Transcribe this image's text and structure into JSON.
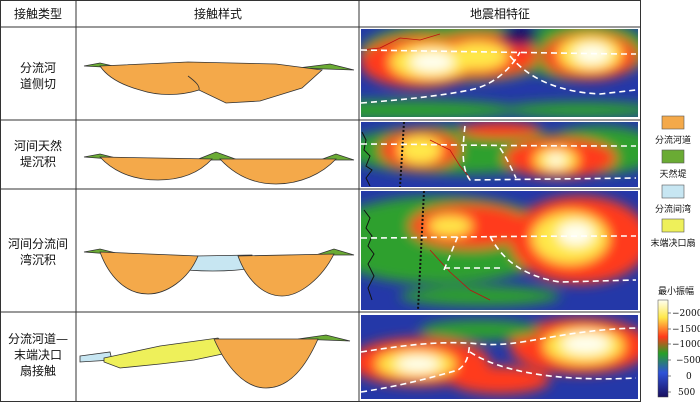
{
  "header": {
    "col_type": "接触类型",
    "col_style": "接触样式",
    "col_seismic": "地震相特征"
  },
  "rows": [
    {
      "type_lines": [
        "分流河",
        "道侧切"
      ]
    },
    {
      "type_lines": [
        "河间天然",
        "堤沉积"
      ]
    },
    {
      "type_lines": [
        "河间分流间",
        "湾沉积"
      ]
    },
    {
      "type_lines": [
        "分流河道—",
        "末端决口",
        "扇接触"
      ]
    }
  ],
  "legend": [
    {
      "label": "分流河道",
      "color": "#f4a94a"
    },
    {
      "label": "天然堤",
      "color": "#6aab34"
    },
    {
      "label": "分流间湾",
      "color": "#c7e6f2"
    },
    {
      "label": "末端决口扇",
      "color": "#eef05a"
    }
  ],
  "colorbar": {
    "title": "最小振幅",
    "ticks": [
      "−2000",
      "−1500",
      "−1000",
      "−500",
      "0",
      "500"
    ]
  }
}
